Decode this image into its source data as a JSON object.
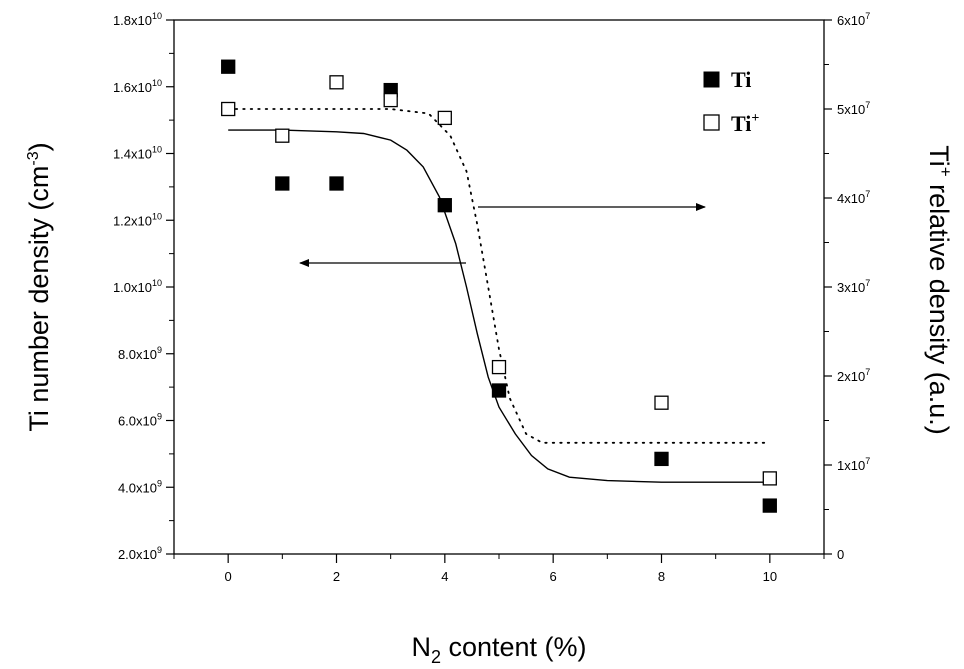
{
  "chart_data": {
    "type": "scatter",
    "x_axis": {
      "label_main": "N",
      "label_sub": "2",
      "label_rest": " content (%)",
      "range": [
        -1,
        11
      ],
      "ticks": [
        0,
        2,
        4,
        6,
        8,
        10
      ],
      "tick_labels": [
        "0",
        "2",
        "4",
        "6",
        "8",
        "10"
      ]
    },
    "y_left": {
      "label_main": "Ti number density (cm",
      "label_sup": "-3",
      "label_end": ")",
      "range": [
        2000000000.0,
        18000000000.0
      ],
      "ticks": [
        2000000000.0,
        4000000000.0,
        6000000000.0,
        8000000000.0,
        10000000000.0,
        12000000000.0,
        14000000000.0,
        16000000000.0,
        18000000000.0
      ],
      "tick_mantissa": [
        "2.0x10",
        "4.0x10",
        "6.0x10",
        "8.0x10",
        "1.0x10",
        "1.2x10",
        "1.4x10",
        "1.6x10",
        "1.8x10"
      ],
      "tick_exponent": [
        "9",
        "9",
        "9",
        "9",
        "10",
        "10",
        "10",
        "10",
        "10"
      ]
    },
    "y_right": {
      "label_pre": "Ti",
      "label_sup": "+",
      "label_rest": " relative density (a.u.)",
      "range": [
        0,
        60000000.0
      ],
      "ticks": [
        0,
        10000000.0,
        20000000.0,
        30000000.0,
        40000000.0,
        50000000.0,
        60000000.0
      ],
      "tick_mantissa": [
        "0",
        "1x10",
        "2x10",
        "3x10",
        "4x10",
        "5x10",
        "6x10"
      ],
      "tick_exponent": [
        "",
        "7",
        "7",
        "7",
        "7",
        "7",
        "7"
      ]
    },
    "series": [
      {
        "name": "Ti",
        "axis": "left",
        "marker": "filled-square",
        "x": [
          0,
          1,
          2,
          3,
          4,
          5,
          8,
          10
        ],
        "y": [
          16600000000.0,
          13100000000.0,
          13100000000.0,
          15900000000.0,
          12450000000.0,
          6900000000.0,
          4850000000.0,
          3450000000.0
        ]
      },
      {
        "name": "Ti",
        "name_sup": "+",
        "axis": "right",
        "marker": "open-square",
        "x": [
          0,
          1,
          2,
          3,
          4,
          5,
          8,
          10
        ],
        "y": [
          50000000.0,
          47000000.0,
          53000000.0,
          51000000.0,
          49000000.0,
          21000000.0,
          17000000.0,
          8500000.0
        ]
      }
    ],
    "fit_curves": [
      {
        "axis": "left",
        "style": "solid",
        "x": [
          0,
          1,
          2,
          2.5,
          3,
          3.3,
          3.6,
          3.9,
          4.2,
          4.4,
          4.6,
          4.8,
          5.0,
          5.3,
          5.6,
          5.9,
          6.3,
          7,
          8,
          9,
          10
        ],
        "y": [
          14700000000.0,
          14700000000.0,
          14650000000.0,
          14600000000.0,
          14400000000.0,
          14100000000.0,
          13600000000.0,
          12700000000.0,
          11300000000.0,
          10000000000.0,
          8600000000.0,
          7300000000.0,
          6400000000.0,
          5600000000.0,
          4950000000.0,
          4550000000.0,
          4300000000.0,
          4200000000.0,
          4150000000.0,
          4150000000.0,
          4150000000.0
        ]
      },
      {
        "axis": "right",
        "style": "dotted",
        "x": [
          0,
          1,
          2,
          3,
          3.7,
          4.1,
          4.4,
          4.6,
          4.8,
          5.0,
          5.2,
          5.5,
          5.8,
          6.5,
          7,
          8,
          9,
          10
        ],
        "y": [
          50000000.0,
          50000000.0,
          50000000.0,
          50000000.0,
          49500000.0,
          47000000.0,
          43000000.0,
          37000000.0,
          30000000.0,
          23000000.0,
          17500000.0,
          13500000.0,
          12500000.0,
          12500000.0,
          12500000.0,
          12500000.0,
          12500000.0,
          12500000.0
        ]
      }
    ],
    "annotations": [
      {
        "type": "arrow",
        "direction": "left",
        "meaning": "solid curve uses left axis"
      },
      {
        "type": "arrow",
        "direction": "right",
        "meaning": "dotted curve uses right axis"
      }
    ],
    "legend": {
      "placement": "top-right"
    },
    "grid": false
  }
}
